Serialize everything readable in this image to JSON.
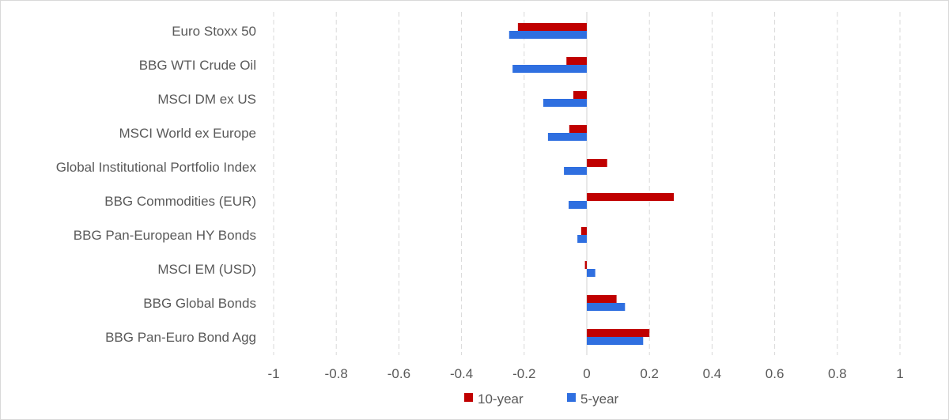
{
  "chart_data": {
    "type": "bar",
    "orientation": "horizontal",
    "categories": [
      "Euro Stoxx 50",
      "BBG WTI Crude Oil",
      "MSCI DM ex US",
      "MSCI World ex Europe",
      "Global Institutional Portfolio Index",
      "BBG Commodities (EUR)",
      "BBG Pan-European HY Bonds",
      "MSCI EM (USD)",
      "BBG Global Bonds",
      "BBG Pan-Euro Bond Agg"
    ],
    "series": [
      {
        "name": "10-year",
        "color": "#c00000",
        "values": [
          -0.22,
          -0.065,
          -0.043,
          -0.056,
          0.065,
          0.278,
          -0.018,
          -0.006,
          0.095,
          0.2
        ]
      },
      {
        "name": "5-year",
        "color": "#2f6fe0",
        "values": [
          -0.248,
          -0.237,
          -0.139,
          -0.124,
          -0.073,
          -0.058,
          -0.03,
          0.027,
          0.122,
          0.18
        ]
      }
    ],
    "xlim": [
      -1,
      1
    ],
    "x_ticks": [
      -1,
      -0.8,
      -0.6,
      -0.4,
      -0.2,
      0,
      0.2,
      0.4,
      0.6,
      0.8,
      1
    ],
    "x_tick_labels": [
      "-1",
      "-0.8",
      "-0.6",
      "-0.4",
      "-0.2",
      "0",
      "0.2",
      "0.4",
      "0.6",
      "0.8",
      "1"
    ],
    "grid": "vertical dashed",
    "legend": "bottom-center",
    "title": "",
    "xlabel": "",
    "ylabel": ""
  }
}
